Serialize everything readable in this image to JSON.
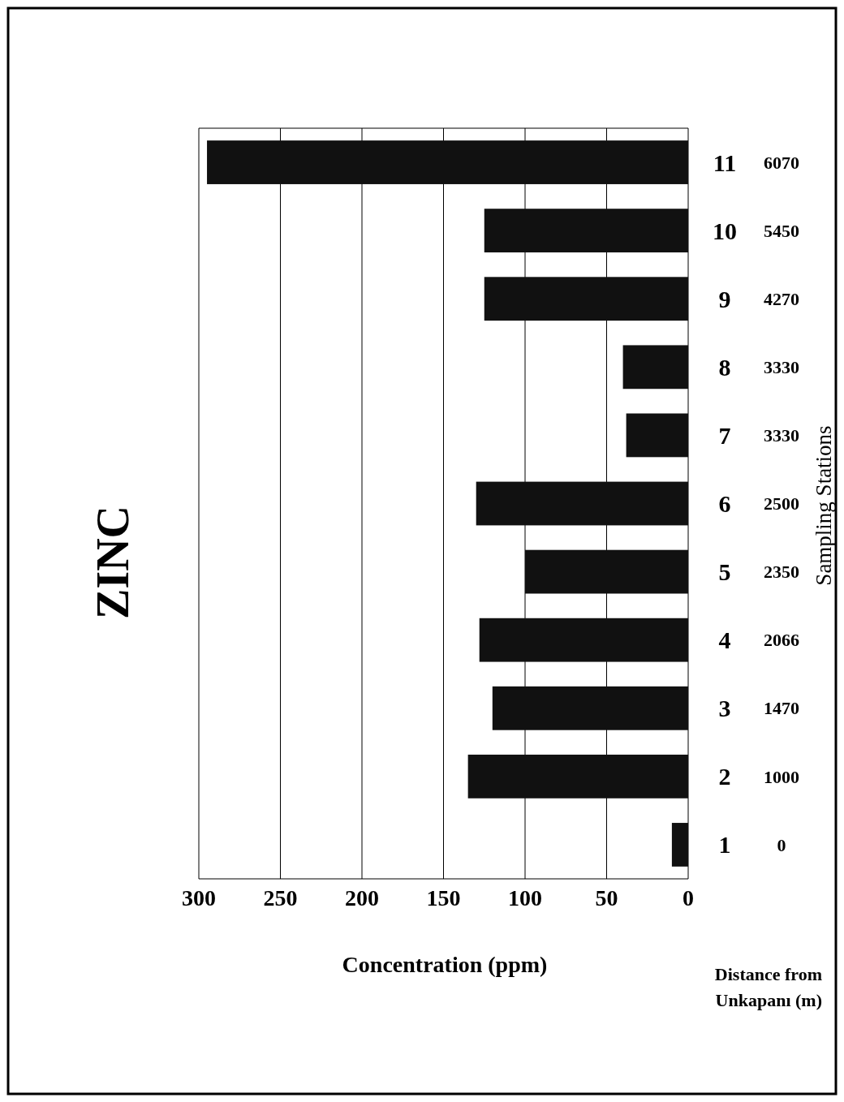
{
  "chart_data": {
    "type": "bar",
    "orientation": "horizontal",
    "title": "ZINC",
    "ylabel": "Sampling Stations",
    "xlabel": "Concentration (ppm)",
    "categories": [
      "11",
      "10",
      "9",
      "8",
      "7",
      "6",
      "5",
      "4",
      "3",
      "2",
      "1"
    ],
    "series": [
      {
        "color": "#111111",
        "values": [
          295,
          125,
          125,
          40,
          38,
          130,
          100,
          128,
          120,
          135,
          10
        ]
      }
    ],
    "xlim": [
      300,
      0
    ],
    "xticks": [
      300,
      250,
      200,
      150,
      100,
      50,
      0
    ],
    "grid": "x",
    "annotations": [
      "Distance from\nUnkapanı (m)",
      "6070",
      "5450",
      "4270",
      "3330",
      "3330",
      "2500",
      "2350",
      "2066",
      "1470",
      "1000",
      "0"
    ]
  }
}
